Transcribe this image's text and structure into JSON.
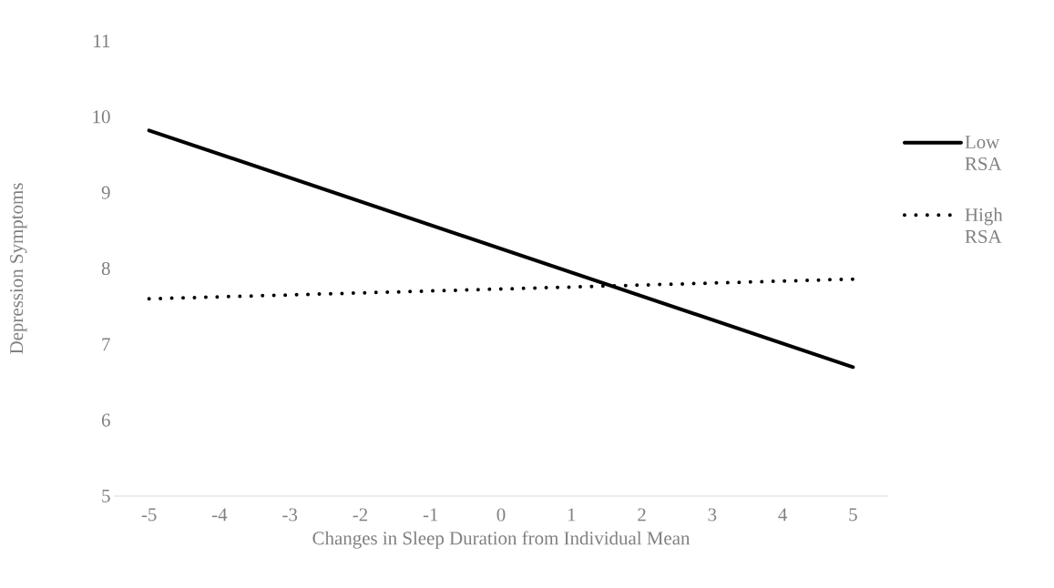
{
  "chart_data": {
    "type": "line",
    "xlabel": "Changes in Sleep Duration from Individual Mean",
    "ylabel": "Depression Symptoms",
    "x": [
      -5,
      5
    ],
    "series": [
      {
        "name": "Low RSA",
        "color": "#000000",
        "line_style": "solid",
        "values": [
          9.82,
          6.7
        ]
      },
      {
        "name": "High RSA",
        "color": "#000000",
        "line_style": "dotted",
        "values": [
          7.6,
          7.86
        ]
      }
    ],
    "xlim": [
      -5.5,
      5.5
    ],
    "xticks": [
      -5,
      -4,
      -3,
      -2,
      -1,
      0,
      1,
      2,
      3,
      4,
      5
    ],
    "ylim": [
      5,
      11
    ],
    "yticks": [
      5,
      6,
      7,
      8,
      9,
      10,
      11
    ],
    "grid": false,
    "legend": "right",
    "marker": "none"
  }
}
